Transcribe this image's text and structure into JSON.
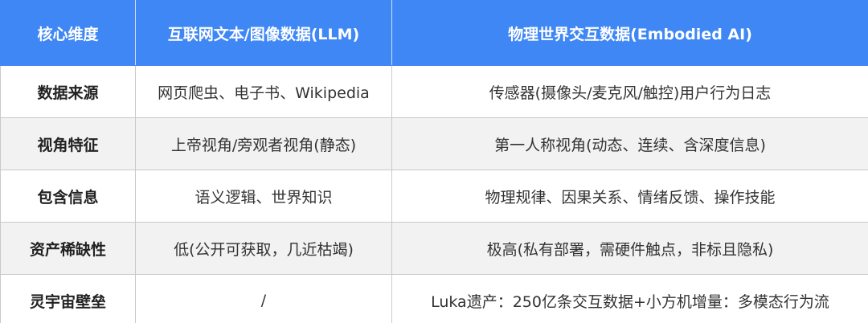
{
  "table": {
    "header": [
      "核心维度",
      "互联网文本/图像数据(LLM)",
      "物理世界交互数据(Embodied AI)"
    ],
    "rows": [
      [
        "数据来源",
        "网页爬虫、电子书、Wikipedia",
        "传感器(摄像头/麦克风/触控)用户行为日志"
      ],
      [
        "视角特征",
        "上帝视角/旁观者视角(静态)",
        "第一人称视角(动态、连续、含深度信息)"
      ],
      [
        "包含信息",
        "语义逻辑、世界知识",
        "物理规律、因果关系、情绪反馈、操作技能"
      ],
      [
        "资产稀缺性",
        "低(公开可获取，几近枯竭)",
        "极高(私有部署，需硬件触点，非标且隐私)"
      ],
      [
        "灵宇宙壁垒",
        "/",
        "Luka遗产：250亿条交互数据+小方机增量：多模态行为流"
      ]
    ]
  }
}
